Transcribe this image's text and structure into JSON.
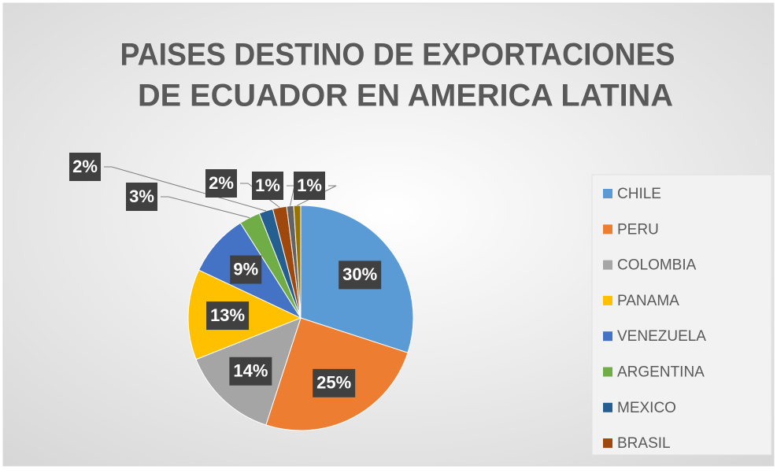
{
  "chart_data": {
    "type": "pie",
    "title": [
      "PAISES DESTINO DE EXPORTACIONES",
      "DE ECUADOR EN AMERICA LATINA"
    ],
    "categories": [
      "CHILE",
      "PERU",
      "COLOMBIA",
      "PANAMA",
      "VENEZUELA",
      "ARGENTINA",
      "MEXICO",
      "BRASIL",
      null,
      null
    ],
    "values": [
      30,
      25,
      14,
      13,
      9,
      3,
      2,
      2,
      1,
      1
    ],
    "value_labels": [
      "30%",
      "25%",
      "14%",
      "13%",
      "9%",
      "3%",
      "2%",
      "2%",
      "1%",
      "1%"
    ],
    "colors": [
      "#5b9bd5",
      "#ed7d31",
      "#a5a5a5",
      "#ffc000",
      "#4472c4",
      "#70ad47",
      "#255e91",
      "#9e480e",
      "#636363",
      "#997300"
    ],
    "legend": "right"
  }
}
